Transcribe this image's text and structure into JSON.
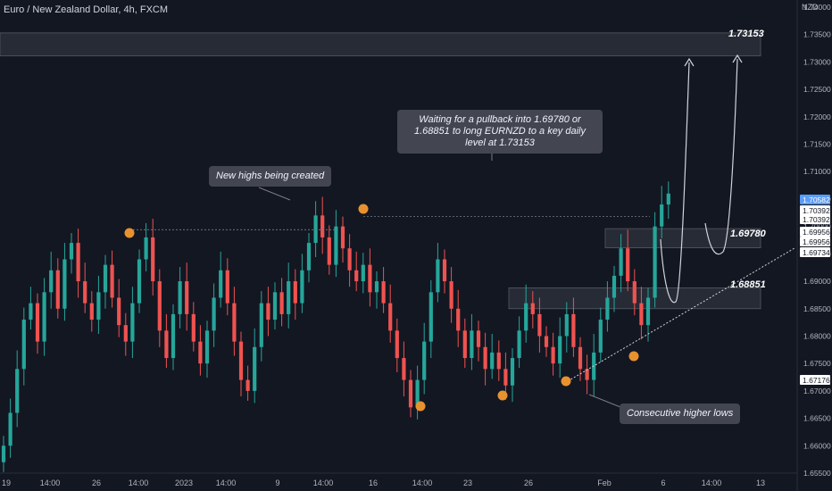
{
  "header": {
    "title": "Euro / New Zealand Dollar, 4h, FXCM",
    "currency": "NZD"
  },
  "annotations": {
    "waiting": "Waiting for a pullback into 1.69780 or 1.68851 to long EURNZD to a key daily level at 1.73153",
    "new_highs": "New highs being created",
    "higher_lows": "Consecutive higher lows"
  },
  "zones": {
    "target": {
      "label": "1.73153",
      "value": 1.73153
    },
    "zone1": {
      "label": "1.69780",
      "value": 1.6978
    },
    "zone2": {
      "label": "1.68851",
      "value": 1.68851
    }
  },
  "colors": {
    "up": "#26a69a",
    "down": "#ef5350",
    "marker": "#e8922f",
    "bg": "#131722",
    "zone": "#2a2e39"
  },
  "chart_data": {
    "type": "candlestick",
    "symbol": "EURNZD",
    "timeframe": "4h",
    "y_axis": {
      "min": 1.655,
      "max": 1.74,
      "ticks": [
        "1.74000",
        "1.73500",
        "1.73000",
        "1.72500",
        "1.72000",
        "1.71500",
        "1.71000",
        "1.70500",
        "1.70000",
        "1.69500",
        "1.69000",
        "1.68500",
        "1.68000",
        "1.67500",
        "1.67000",
        "1.66500",
        "1.66000",
        "1.65500"
      ]
    },
    "x_axis": {
      "ticks": [
        "19",
        "14:00",
        "26",
        "14:00",
        "2023",
        "14:00",
        "9",
        "14:00",
        "16",
        "14:00",
        "23",
        "26",
        "Feb",
        "6",
        "14:00",
        "13"
      ]
    },
    "price_labels": [
      "1.70582",
      "1.70392",
      "1.70392",
      "1.69956",
      "1.69956",
      "1.69734",
      "1.67176"
    ],
    "current_price": 1.70582,
    "series": [
      {
        "values": [
          1.66,
          1.666,
          1.674,
          1.683,
          1.686,
          1.679,
          1.688,
          1.692,
          1.685,
          1.694,
          1.697,
          1.69,
          1.686,
          1.683,
          1.688,
          1.693,
          1.687,
          1.682,
          1.679,
          1.686,
          1.694,
          1.698,
          1.69,
          1.681,
          1.676,
          1.684,
          1.69,
          1.684,
          1.679,
          1.675,
          1.681,
          1.687,
          1.692,
          1.686,
          1.679,
          1.672,
          1.67,
          1.678,
          1.686,
          1.683,
          1.688,
          1.684,
          1.69,
          1.686,
          1.692,
          1.697,
          1.702,
          1.698,
          1.693,
          1.7,
          1.696,
          1.692,
          1.69,
          1.693,
          1.688,
          1.69,
          1.686,
          1.681,
          1.676,
          1.672,
          1.667,
          1.672,
          1.679,
          1.688,
          1.694,
          1.69,
          1.685,
          1.681,
          1.676,
          1.681,
          1.678,
          1.674,
          1.677,
          1.674,
          1.671,
          1.676,
          1.681,
          1.686,
          1.684,
          1.68,
          1.678,
          1.675,
          1.68,
          1.684,
          1.678,
          1.674,
          1.672,
          1.677,
          1.683,
          1.687,
          1.691,
          1.696,
          1.69,
          1.686,
          1.682,
          1.687,
          1.7,
          1.704,
          1.706
        ]
      }
    ]
  }
}
